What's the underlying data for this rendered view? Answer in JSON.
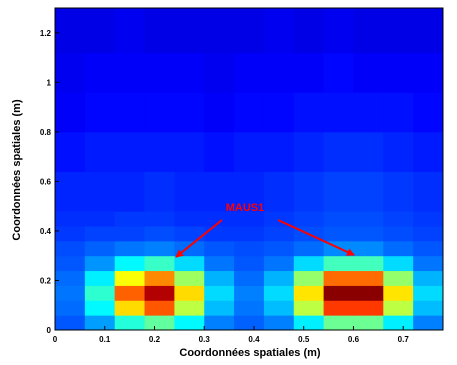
{
  "chart_data": {
    "type": "heatmap",
    "colormap": "jet",
    "zlim": [
      0,
      1
    ],
    "xlabel": "Coordonnées spatiales (m)",
    "ylabel": "Coordonnées spatiales (m)",
    "annotation": "MAUS1",
    "annotation_color": "#ff0000",
    "xlim": [
      0,
      0.78
    ],
    "ylim": [
      0,
      1.3
    ],
    "xticks": [
      0,
      0.1,
      0.2,
      0.3,
      0.4,
      0.5,
      0.6,
      0.7
    ],
    "yticks": [
      0,
      0.2,
      0.4,
      0.6,
      0.8,
      1,
      1.2
    ],
    "x_edges": [
      0,
      0.06,
      0.12,
      0.18,
      0.24,
      0.3,
      0.36,
      0.42,
      0.48,
      0.54,
      0.6,
      0.66,
      0.72,
      0.78
    ],
    "y_edges": [
      0,
      0.06,
      0.12,
      0.18,
      0.24,
      0.3,
      0.36,
      0.42,
      0.48,
      0.64,
      0.8,
      0.96,
      1.12,
      1.3
    ],
    "z": [
      [
        0.21,
        0.28,
        0.41,
        0.47,
        0.37,
        0.25,
        0.22,
        0.25,
        0.36,
        0.48,
        0.48,
        0.36,
        0.25
      ],
      [
        0.23,
        0.37,
        0.66,
        0.79,
        0.56,
        0.31,
        0.24,
        0.31,
        0.56,
        0.82,
        0.82,
        0.56,
        0.31
      ],
      [
        0.24,
        0.42,
        0.78,
        0.95,
        0.66,
        0.34,
        0.25,
        0.34,
        0.65,
        0.99,
        0.99,
        0.65,
        0.34
      ],
      [
        0.23,
        0.36,
        0.62,
        0.74,
        0.53,
        0.3,
        0.23,
        0.3,
        0.52,
        0.77,
        0.77,
        0.52,
        0.3
      ],
      [
        0.21,
        0.27,
        0.37,
        0.43,
        0.34,
        0.24,
        0.21,
        0.24,
        0.34,
        0.44,
        0.44,
        0.34,
        0.24
      ],
      [
        0.2,
        0.22,
        0.24,
        0.25,
        0.23,
        0.21,
        0.2,
        0.21,
        0.23,
        0.26,
        0.26,
        0.23,
        0.21
      ],
      [
        0.18,
        0.19,
        0.19,
        0.2,
        0.19,
        0.18,
        0.18,
        0.19,
        0.2,
        0.21,
        0.21,
        0.2,
        0.19
      ],
      [
        0.17,
        0.17,
        0.18,
        0.18,
        0.17,
        0.17,
        0.17,
        0.18,
        0.19,
        0.2,
        0.2,
        0.19,
        0.18
      ],
      [
        0.16,
        0.16,
        0.16,
        0.17,
        0.16,
        0.16,
        0.16,
        0.17,
        0.18,
        0.19,
        0.19,
        0.18,
        0.17
      ],
      [
        0.14,
        0.15,
        0.15,
        0.15,
        0.15,
        0.14,
        0.15,
        0.15,
        0.16,
        0.17,
        0.17,
        0.16,
        0.15
      ],
      [
        0.12,
        0.13,
        0.13,
        0.13,
        0.13,
        0.12,
        0.13,
        0.13,
        0.14,
        0.14,
        0.14,
        0.14,
        0.13
      ],
      [
        0.11,
        0.12,
        0.12,
        0.12,
        0.12,
        0.11,
        0.12,
        0.12,
        0.12,
        0.13,
        0.12,
        0.12,
        0.12
      ],
      [
        0.1,
        0.1,
        0.11,
        0.1,
        0.1,
        0.1,
        0.1,
        0.11,
        0.1,
        0.11,
        0.1,
        0.1,
        0.1
      ]
    ]
  }
}
